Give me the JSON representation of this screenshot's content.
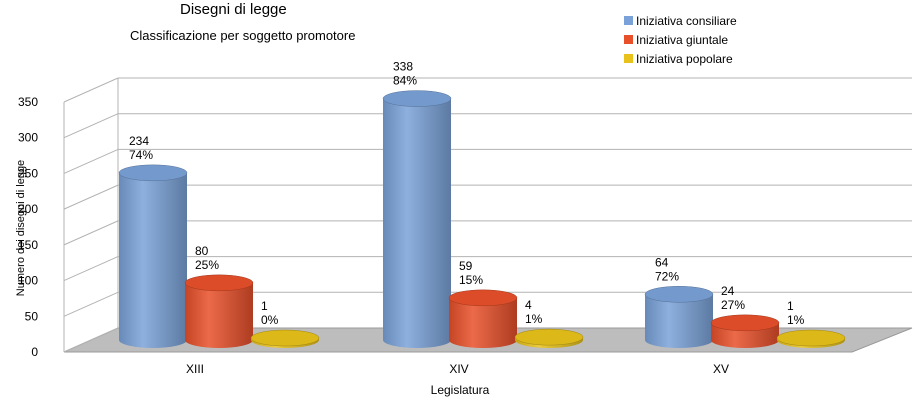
{
  "chart_data": {
    "type": "bar",
    "title": "Disegni di legge",
    "subtitle": "Classificazione per soggetto promotore",
    "xlabel": "Legislatura",
    "ylabel": "Numero dei disegni di legge",
    "categories": [
      "XIII",
      "XIV",
      "XV"
    ],
    "ylim": [
      0,
      350
    ],
    "yticks": [
      0,
      50,
      100,
      150,
      200,
      250,
      300,
      350
    ],
    "grid": true,
    "legend_position": "top-right",
    "series": [
      {
        "name": "Iniziativa consiliare",
        "color": "#7aa2d8",
        "values": [
          234,
          338,
          64
        ],
        "percent_labels": [
          "74%",
          "84%",
          "72%"
        ]
      },
      {
        "name": "Iniziativa giuntale",
        "color": "#e8502a",
        "values": [
          80,
          59,
          24
        ],
        "percent_labels": [
          "25%",
          "15%",
          "27%"
        ]
      },
      {
        "name": "Iniziativa popolare",
        "color": "#e8c21a",
        "values": [
          1,
          4,
          1
        ],
        "percent_labels": [
          "0%",
          "1%",
          "1%"
        ]
      }
    ]
  }
}
